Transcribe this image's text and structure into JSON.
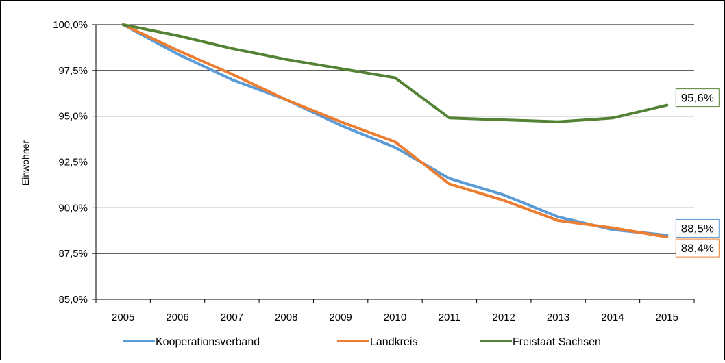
{
  "chart_data": {
    "type": "line",
    "title": "",
    "xlabel": "",
    "ylabel": "Einwohner",
    "ylim": [
      85.0,
      100.0
    ],
    "y_ticks": [
      100.0,
      97.5,
      95.0,
      92.5,
      90.0,
      87.5,
      85.0
    ],
    "y_tick_labels": [
      "100,0%",
      "97,5%",
      "95,0%",
      "92,5%",
      "90,0%",
      "87,5%",
      "85,0%"
    ],
    "categories": [
      "2005",
      "2006",
      "2007",
      "2008",
      "2009",
      "2010",
      "2011",
      "2012",
      "2013",
      "2014",
      "2015"
    ],
    "grid": "horizontal",
    "legend_position": "bottom",
    "series": [
      {
        "name": "Kooperationsverband",
        "color": "#5b9bd5",
        "values": [
          100.0,
          98.4,
          97.0,
          95.9,
          94.5,
          93.3,
          91.6,
          90.7,
          89.5,
          88.8,
          88.5
        ],
        "end_label": "88,5%"
      },
      {
        "name": "Landkreis",
        "color": "#ed7d31",
        "values": [
          100.0,
          98.6,
          97.3,
          95.9,
          94.7,
          93.6,
          91.3,
          90.4,
          89.3,
          88.9,
          88.4
        ],
        "end_label": "88,4%"
      },
      {
        "name": "Freistaat Sachsen",
        "color": "#548235",
        "values": [
          100.0,
          99.4,
          98.7,
          98.1,
          97.6,
          97.1,
          94.9,
          94.8,
          94.7,
          94.9,
          95.6
        ],
        "end_label": "95,6%"
      }
    ]
  }
}
